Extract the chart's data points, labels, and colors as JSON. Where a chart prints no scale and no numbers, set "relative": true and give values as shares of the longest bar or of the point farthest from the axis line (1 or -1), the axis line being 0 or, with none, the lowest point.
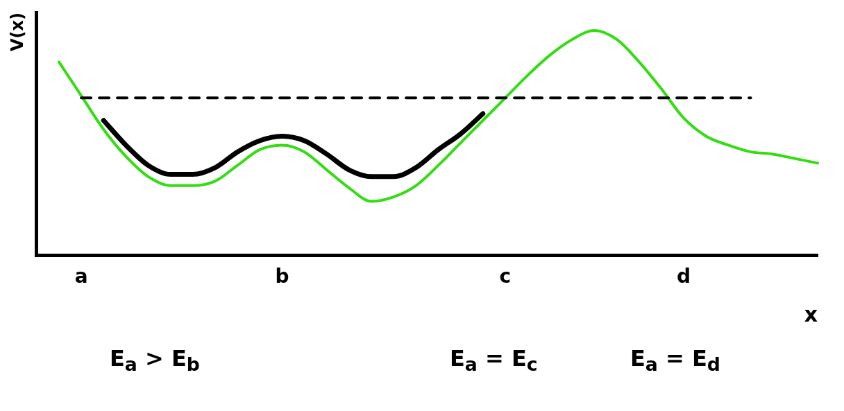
{
  "chart_data": {
    "type": "line",
    "relative": true,
    "ylabel": "V(x)",
    "xlabel": "x",
    "categories": [
      null,
      null,
      "a",
      null,
      null,
      null,
      null,
      null,
      null,
      null,
      null,
      "b",
      null,
      null,
      null,
      null,
      null,
      null,
      null,
      null,
      null,
      "c",
      null,
      null,
      null,
      null,
      null,
      null,
      null,
      "d",
      null,
      null,
      null,
      null,
      null,
      null
    ],
    "series": [
      {
        "color": "#000000",
        "line_style": "dashed",
        "values": [
          null,
          null,
          0.7,
          0.7,
          0.7,
          0.7,
          0.7,
          0.7,
          0.7,
          0.7,
          0.7,
          0.7,
          0.7,
          0.7,
          0.7,
          0.7,
          0.7,
          0.7,
          0.7,
          0.7,
          0.7,
          0.7,
          0.7,
          0.7,
          0.7,
          0.7,
          0.7,
          0.7,
          0.7,
          0.7,
          0.7,
          0.7,
          0.7,
          null,
          null,
          null
        ]
      },
      {
        "color": "#000000",
        "values": [
          null,
          null,
          null,
          0.6,
          0.49,
          0.4,
          0.36,
          0.36,
          0.39,
          0.46,
          0.51,
          0.53,
          0.51,
          0.45,
          0.38,
          0.35,
          0.35,
          0.39,
          0.47,
          0.54,
          0.63,
          null,
          null,
          null,
          null,
          null,
          null,
          null,
          null,
          null,
          null,
          null,
          null,
          null,
          null,
          null
        ]
      },
      {
        "color": "#33dd11",
        "values": [
          null,
          0.86,
          0.71,
          0.56,
          0.44,
          0.35,
          0.31,
          0.31,
          0.33,
          0.4,
          0.47,
          0.49,
          0.46,
          0.38,
          0.3,
          0.24,
          0.26,
          0.31,
          0.4,
          0.5,
          0.6,
          0.7,
          0.8,
          0.89,
          0.96,
          1,
          0.96,
          0.86,
          0.74,
          0.61,
          0.53,
          0.49,
          0.46,
          0.45,
          0.43,
          0.41
        ]
      }
    ],
    "annotations": [
      "E$_{a}$ > E$_{b}$",
      "E$_{a}$ = E$_{c}$",
      "E$_{a}$ = E$_{d}$"
    ],
    "legend": false,
    "grid": false,
    "marker": "none",
    "line_style": "solid"
  }
}
